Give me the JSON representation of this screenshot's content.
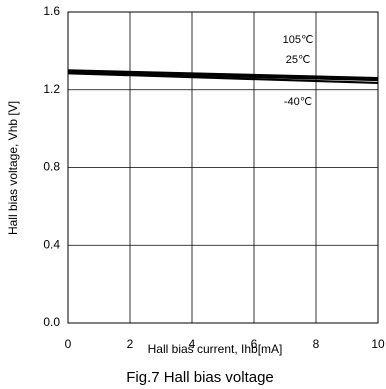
{
  "chart_data": {
    "type": "line",
    "xlabel": "Hall bias current, Ihb[mA]",
    "ylabel": "Hall bias voltage, Vhb [V]",
    "caption": "Fig.7 Hall bias voltage",
    "x": [
      0,
      10
    ],
    "series": [
      {
        "name": "105℃",
        "color": "#000000",
        "values": [
          1.3,
          1.26
        ]
      },
      {
        "name": "25℃",
        "color": "#000000",
        "values": [
          1.29,
          1.25
        ]
      },
      {
        "name": "-40℃",
        "color": "#000000",
        "values": [
          1.285,
          1.235
        ]
      }
    ],
    "xlim": [
      0,
      10
    ],
    "xticks": [
      0,
      2,
      4,
      6,
      8,
      10
    ],
    "ylim": [
      0,
      1.6
    ],
    "yticks": [
      {
        "value": 0,
        "label": "0.0"
      },
      0.4,
      0.8,
      1.2,
      1.6
    ],
    "grid": true
  }
}
